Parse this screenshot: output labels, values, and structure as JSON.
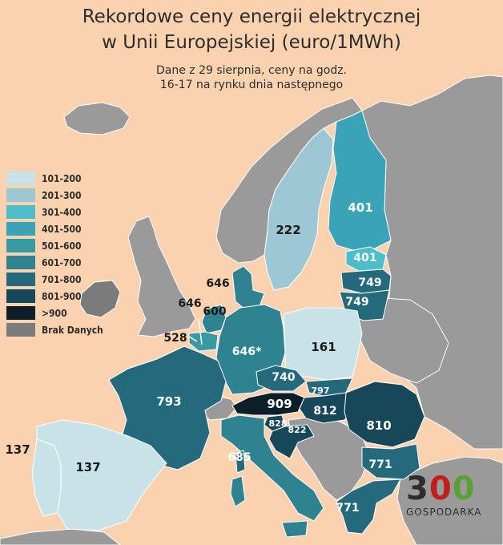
{
  "title_line1": "Rekordowe ceny energii elektrycznej",
  "title_line2": "w Unii Europejskiej (euro/1MWh)",
  "subtitle_line1": "Dane z 29 sierpnia, ceny na godz.",
  "subtitle_line2": "16-17 na rynku dnia następnego",
  "legend": [
    {
      "label": "101-200",
      "color": "#c8e3e8"
    },
    {
      "label": "201-300",
      "color": "#9cc7d3"
    },
    {
      "label": "301-400",
      "color": "#4bbec9"
    },
    {
      "label": "401-500",
      "color": "#3ba3b7"
    },
    {
      "label": "501-600",
      "color": "#3a9aa4"
    },
    {
      "label": "601-700",
      "color": "#2f8391"
    },
    {
      "label": "701-800",
      "color": "#25697c"
    },
    {
      "label": "801-900",
      "color": "#17485a"
    },
    {
      "label": ">900",
      "color": "#0c1e28"
    },
    {
      "label": "Brak Danych",
      "color": "#7b7b7b"
    }
  ],
  "price_labels": {
    "finland": "401",
    "sweden": "222",
    "estonia": "401",
    "latvia": "749",
    "lithuania": "749",
    "denmark": "646",
    "netherlands": "646",
    "belgium_lux_line": "600",
    "belgium": "528",
    "germany": "646*",
    "poland": "161",
    "czechia": "740",
    "slovakia": "797",
    "austria": "909",
    "hungary": "812",
    "romania": "810",
    "slovenia": "828",
    "croatia": "822",
    "france": "793",
    "italy": "685",
    "spain": "137",
    "portugal": "137",
    "bulgaria": "771",
    "greece": "771"
  },
  "logo_digits": [
    "3",
    "0",
    "0"
  ],
  "logo_text": "GOSPODARKA"
}
